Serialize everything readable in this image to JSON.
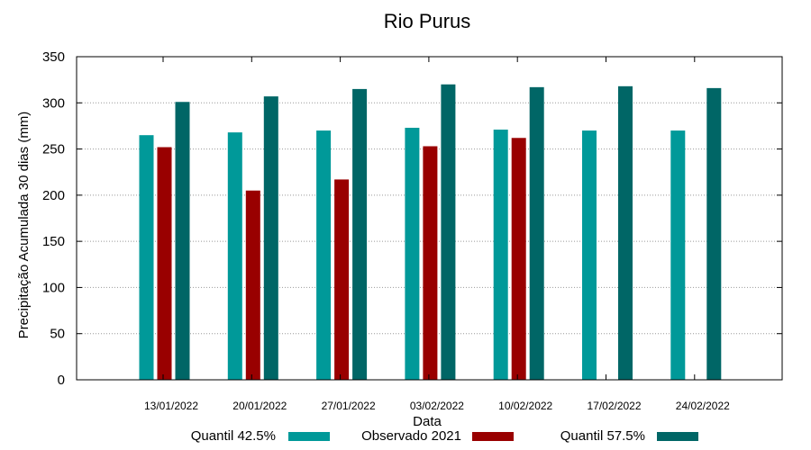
{
  "chart_data": {
    "type": "bar",
    "title": "Rio Purus",
    "xlabel": "Data",
    "ylabel": "Precipitação Acumulada 30 dias (mm)",
    "ylim": [
      0,
      350
    ],
    "yticks": [
      0,
      50,
      100,
      150,
      200,
      250,
      300,
      350
    ],
    "grid": true,
    "legend_position": "bottom",
    "categories": [
      "13/01/2022",
      "20/01/2022",
      "27/01/2022",
      "03/02/2022",
      "10/02/2022",
      "17/02/2022",
      "24/02/2022"
    ],
    "series": [
      {
        "name": "Quantil 42.5%",
        "color": "#009999",
        "values": [
          265,
          268,
          270,
          273,
          271,
          270,
          270
        ]
      },
      {
        "name": "Observado 2021",
        "color": "#990000",
        "values": [
          252,
          205,
          217,
          253,
          262,
          null,
          null
        ]
      },
      {
        "name": "Quantil 57.5%",
        "color": "#006666",
        "values": [
          301,
          307,
          315,
          320,
          317,
          318,
          316
        ]
      }
    ]
  }
}
